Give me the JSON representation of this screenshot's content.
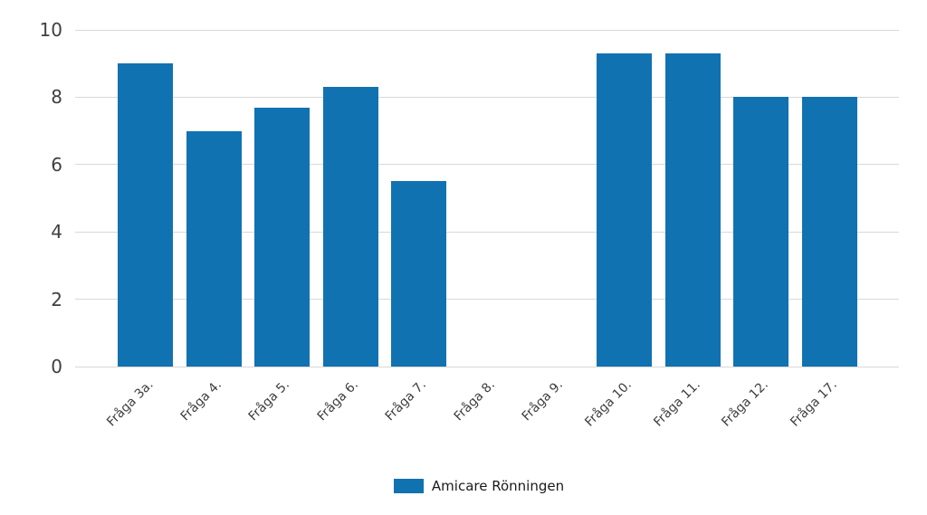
{
  "chart_data": {
    "type": "bar",
    "title": "",
    "xlabel": "",
    "ylabel": "",
    "categories": [
      "Fråga 3a.",
      "Fråga 4.",
      "Fråga 5.",
      "Fråga 6.",
      "Fråga 7.",
      "Fråga 8.",
      "Fråga 9.",
      "Fråga 10.",
      "Fråga 11.",
      "Fråga 12.",
      "Fråga 17."
    ],
    "values": [
      9.0,
      7.0,
      7.7,
      8.3,
      5.5,
      0,
      0,
      9.3,
      9.3,
      8.0,
      8.0
    ],
    "series_name": "Amicare Rönningen",
    "ylim": [
      0,
      10
    ],
    "yticks": [
      0,
      2,
      4,
      6,
      8,
      10
    ],
    "grid": true,
    "legend_position": "bottom",
    "colors": {
      "bar": "#1172b2",
      "gridline": "#d8d8d8",
      "axis_text": "#3f3f3f",
      "legend_text": "#1a1a1a",
      "background": "#ffffff"
    }
  },
  "legend": {
    "label": "Amicare Rönningen"
  }
}
